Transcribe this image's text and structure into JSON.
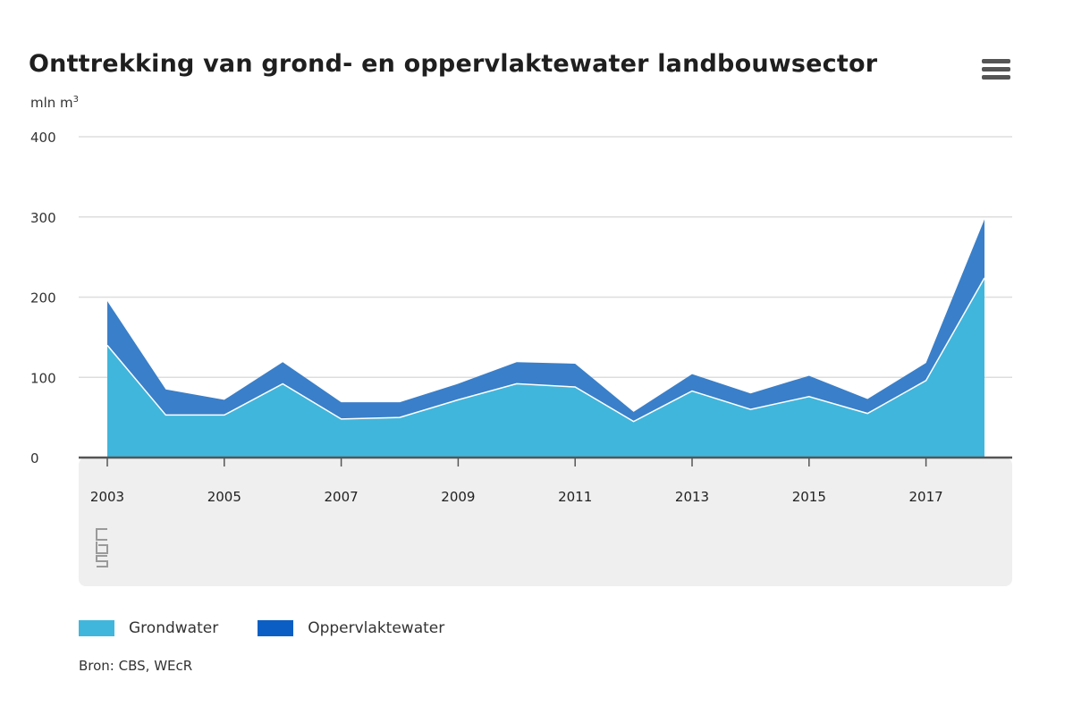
{
  "header": {
    "title": "Onttrekking van grond- en oppervlaktewater landbouwsector",
    "unit_prefix": "mln m",
    "unit_sup": "3",
    "menu_icon": "hamburger-menu-icon"
  },
  "colors": {
    "grondwater": "#41b6dc",
    "oppervlaktewater": "#3a7fc9",
    "oppervlaktewater_legend": "#0b5fc4",
    "axis": "#555555",
    "grid": "#dddddd",
    "panel": "#efefef",
    "logo": "#9a9a9a"
  },
  "chart_data": {
    "type": "area",
    "stacked": true,
    "x": [
      2003,
      2004,
      2005,
      2006,
      2007,
      2008,
      2009,
      2010,
      2011,
      2012,
      2013,
      2014,
      2015,
      2016,
      2017,
      2018
    ],
    "series": [
      {
        "name": "Grondwater",
        "values": [
          140,
          53,
          53,
          92,
          48,
          50,
          72,
          92,
          88,
          45,
          83,
          60,
          76,
          55,
          96,
          224
        ]
      },
      {
        "name": "Oppervlaktewater",
        "values": [
          55,
          32,
          19,
          27,
          21,
          19,
          20,
          27,
          29,
          12,
          21,
          20,
          26,
          18,
          22,
          73
        ]
      }
    ],
    "x_ticks": [
      "2003",
      "2005",
      "2007",
      "2009",
      "2011",
      "2013",
      "2015",
      "2017"
    ],
    "y_ticks": [
      "0",
      "100",
      "200",
      "300",
      "400"
    ],
    "ylim": [
      0,
      400
    ],
    "grid": true,
    "logo": "cbs-logo-icon"
  },
  "legend": [
    {
      "label": "Grondwater",
      "color": "#41b6dc"
    },
    {
      "label": "Oppervlaktewater",
      "color": "#0b5fc4"
    }
  ],
  "footer": {
    "source": "Bron: CBS, WEcR"
  }
}
